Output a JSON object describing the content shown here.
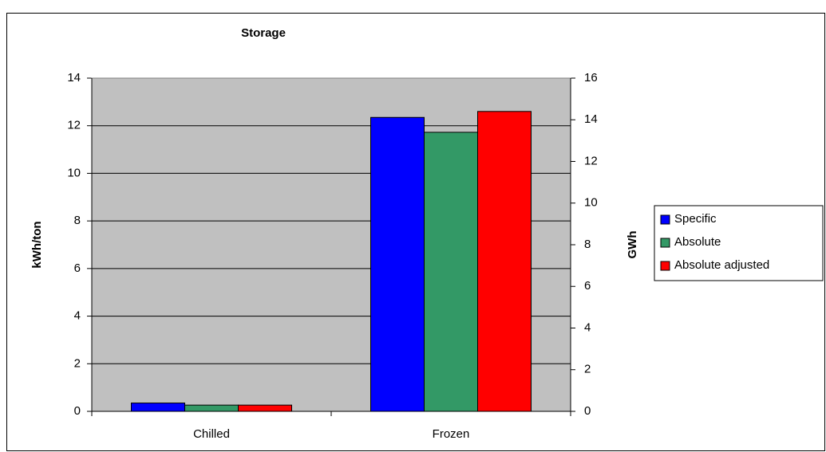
{
  "chart_data": {
    "type": "bar",
    "title": "Storage",
    "categories": [
      "Chilled",
      "Frozen"
    ],
    "series": [
      {
        "name": "Specific",
        "color": "#0000ff",
        "values": [
          0.35,
          12.35
        ]
      },
      {
        "name": "Absolute",
        "color": "#339966",
        "values": [
          0.3,
          13.4
        ],
        "axis": "y2"
      },
      {
        "name": "Absolute adjusted",
        "color": "#ff0000",
        "values": [
          0.3,
          14.4
        ],
        "axis": "y2"
      }
    ],
    "ylabel": "kWh/ton",
    "y2label": "GWh",
    "ylim": [
      0,
      14
    ],
    "yticks": [
      0,
      2,
      4,
      6,
      8,
      10,
      12,
      14
    ],
    "y2lim": [
      0,
      16
    ],
    "y2ticks": [
      0,
      2,
      4,
      6,
      8,
      10,
      12,
      14,
      16
    ],
    "grid": true,
    "legend": "right"
  }
}
